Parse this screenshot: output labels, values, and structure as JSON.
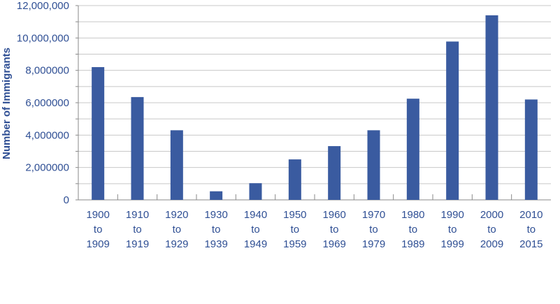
{
  "chart_data": {
    "type": "bar",
    "title": "",
    "xlabel": "",
    "ylabel": "Number of Immigrants",
    "ylim": [
      0,
      12000000
    ],
    "grid": true,
    "colors": {
      "bar": "#3a5ba0",
      "grid": "#c8c8c8",
      "text": "#2f4f94",
      "axis": "#8a8a8a"
    },
    "categories": [
      [
        "1900",
        "to",
        "1909"
      ],
      [
        "1910",
        "to",
        "1919"
      ],
      [
        "1920",
        "to",
        "1929"
      ],
      [
        "1930",
        "to",
        "1939"
      ],
      [
        "1940",
        "to",
        "1949"
      ],
      [
        "1950",
        "to",
        "1959"
      ],
      [
        "1960",
        "to",
        "1969"
      ],
      [
        "1970",
        "to",
        "1979"
      ],
      [
        "1980",
        "to",
        "1989"
      ],
      [
        "1990",
        "to",
        "1999"
      ],
      [
        "2000",
        "to",
        "2009"
      ],
      [
        "2010",
        "to",
        "2015"
      ]
    ],
    "values": [
      8200000,
      6350000,
      4300000,
      530000,
      1030000,
      2500000,
      3320000,
      4300000,
      6250000,
      9780000,
      11400000,
      6200000
    ],
    "yticks": [
      0,
      2000000,
      4000000,
      6000000,
      8000000,
      10000000,
      12000000
    ],
    "ytick_labels": [
      "0",
      "2,000000",
      "4,000000",
      "6,000000",
      "8,000000",
      "10,000,000",
      "12,000,000"
    ]
  }
}
